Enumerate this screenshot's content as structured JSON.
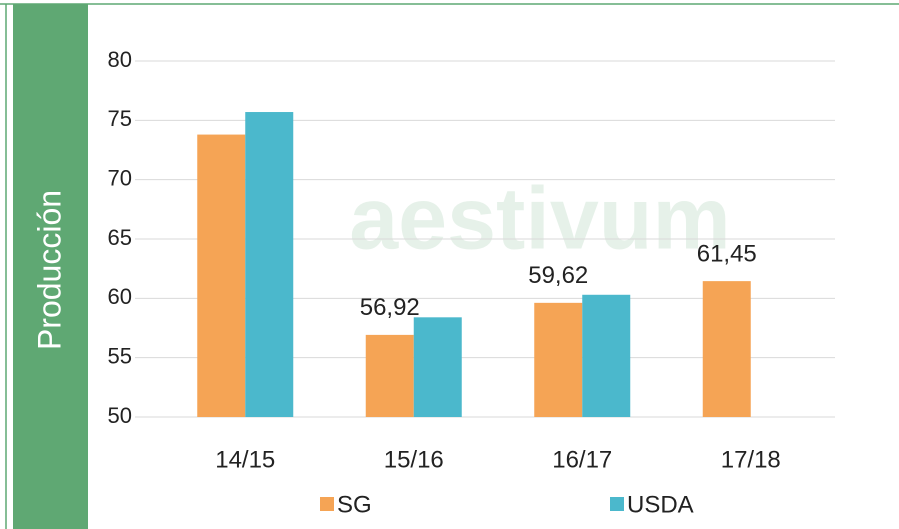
{
  "chart_data": {
    "type": "bar",
    "ylabel": "Producción",
    "watermark": "aestivum",
    "categories": [
      "14/15",
      "15/16",
      "16/17",
      "17/18"
    ],
    "series": [
      {
        "name": "SG",
        "color": "#f5a455",
        "values": [
          73.8,
          56.92,
          59.62,
          61.45
        ],
        "value_labels": [
          null,
          "56,92",
          "59,62",
          "61,45"
        ]
      },
      {
        "name": "USDA",
        "color": "#4bb8cc",
        "values": [
          75.7,
          58.4,
          60.3,
          null
        ]
      }
    ],
    "ylim": [
      50,
      80
    ],
    "yticks": [
      50,
      55,
      60,
      65,
      70,
      75,
      80
    ],
    "grid": true,
    "legend": "bottom"
  }
}
